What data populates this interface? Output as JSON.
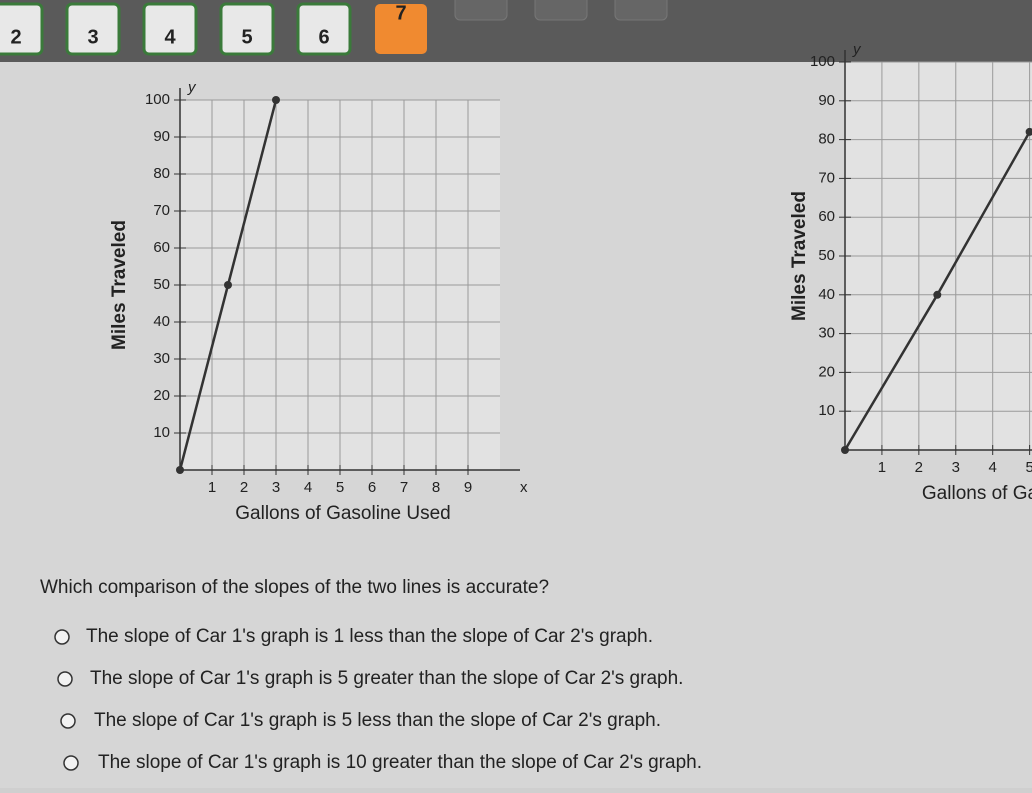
{
  "nav": {
    "tabs": [
      "2",
      "3",
      "4",
      "5",
      "6",
      "7"
    ],
    "active": 5
  },
  "chart_data": [
    {
      "type": "line",
      "x_label": "Gallons of Gasoline Used",
      "y_label": "Miles Traveled",
      "x_axis_letter": "x",
      "y_axis_letter": "y",
      "x": [
        0,
        1.5,
        3
      ],
      "values": [
        0,
        50,
        100
      ],
      "color": "#333333",
      "xlim": [
        0,
        10
      ],
      "ylim": [
        0,
        100
      ],
      "xticks": [
        1,
        2,
        3,
        4,
        5,
        6,
        7,
        8,
        9
      ],
      "yticks": [
        10,
        20,
        30,
        40,
        50,
        60,
        70,
        80,
        90,
        100
      ],
      "grid": true
    },
    {
      "type": "line",
      "x_label": "Gallons of Ga",
      "y_label": "Miles Traveled",
      "y_axis_letter": "y",
      "x": [
        0,
        2.5,
        5
      ],
      "values": [
        0,
        40,
        82
      ],
      "color": "#333333",
      "xlim": [
        0,
        5.2
      ],
      "ylim": [
        0,
        100
      ],
      "xticks": [
        1,
        2,
        3,
        4,
        5
      ],
      "yticks": [
        10,
        20,
        30,
        40,
        50,
        60,
        70,
        80,
        90,
        100
      ],
      "grid": true
    }
  ],
  "question": "Which comparison of the slopes of the two lines is accurate?",
  "options": [
    "The slope of Car 1's graph is 1 less than the slope of Car 2's graph.",
    "The slope of Car 1's graph is 5 greater than the slope of Car 2's graph.",
    "The slope of Car 1's graph is 5 less than the slope of Car 2's graph.",
    "The slope of Car 1's graph is 10 greater than the slope of Car 2's graph."
  ]
}
